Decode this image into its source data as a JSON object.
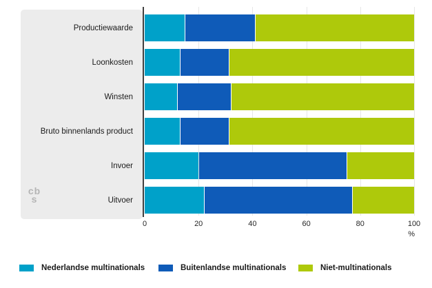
{
  "chart_data": {
    "type": "bar",
    "orientation": "horizontal",
    "stacked": true,
    "categories": [
      "Productiewaarde",
      "Loonkosten",
      "Winsten",
      "Bruto binnenlands product",
      "Invoer",
      "Uitvoer"
    ],
    "series": [
      {
        "name": "Nederlandse multinationals",
        "color": "#00a1c9",
        "values": [
          15,
          13,
          12,
          13,
          20,
          22
        ]
      },
      {
        "name": "Buitenlandse multinationals",
        "color": "#0f5bb8",
        "values": [
          26,
          18,
          20,
          18,
          55,
          55
        ]
      },
      {
        "name": "Niet-multinationals",
        "color": "#aec90b",
        "values": [
          59,
          69,
          68,
          69,
          25,
          23
        ]
      }
    ],
    "xlim": [
      0,
      100
    ],
    "x_ticks": [
      "0",
      "20",
      "40",
      "60",
      "80",
      "100"
    ],
    "x_unit": "%",
    "grid": "vertical",
    "legend_position": "bottom"
  },
  "logo": {
    "line1": "cb",
    "line2": "s"
  },
  "colors": {
    "panel_bg": "#ececec",
    "axis": "#3f3f3f",
    "gridline": "#e6e6e6",
    "text": "#1a1a1a"
  }
}
